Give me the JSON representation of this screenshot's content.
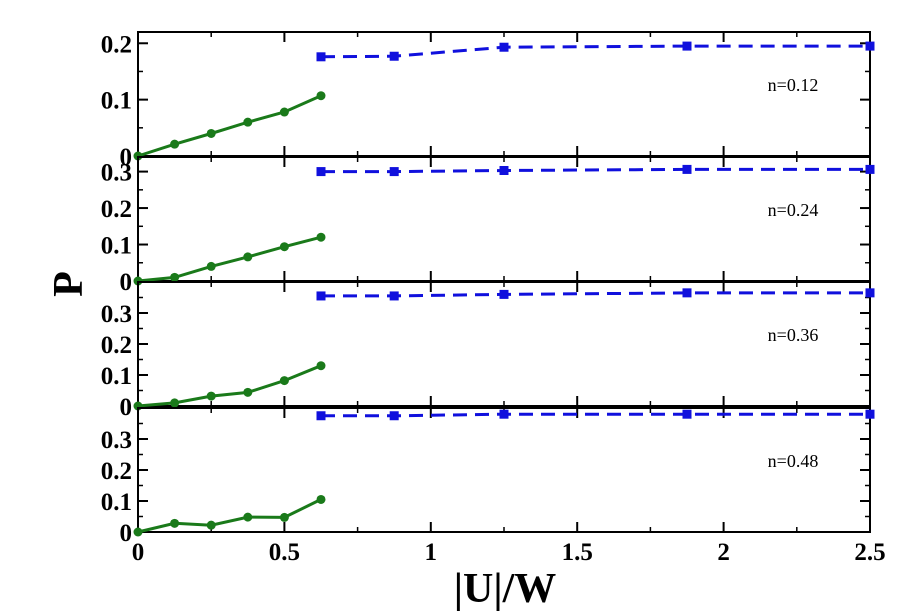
{
  "chart_data": {
    "type": "line",
    "xlabel": "|U|/W",
    "ylabel": "P",
    "x_ticks": [
      "0",
      "0.5",
      "1",
      "1.5",
      "2",
      "2.5"
    ],
    "xlim": [
      0,
      2.5
    ],
    "panels": [
      {
        "annotation": "n=0.12",
        "ylim": [
          0,
          0.22
        ],
        "y_ticks": [
          "0",
          "0.1",
          "0.2"
        ],
        "series": [
          {
            "color": "#1a7a1a",
            "style": "solid",
            "marker": "circle",
            "x": [
              0,
              0.125,
              0.25,
              0.375,
              0.5,
              0.625
            ],
            "y": [
              0.0,
              0.021,
              0.04,
              0.06,
              0.078,
              0.107
            ]
          },
          {
            "color": "#1010dd",
            "style": "dashed",
            "marker": "square",
            "x": [
              0.625,
              0.875,
              1.25,
              1.875,
              2.5
            ],
            "y": [
              0.176,
              0.177,
              0.193,
              0.195,
              0.195
            ]
          }
        ]
      },
      {
        "annotation": "n=0.24",
        "ylim": [
          0,
          0.34
        ],
        "y_ticks": [
          "0",
          "0.1",
          "0.2",
          "0.3"
        ],
        "series": [
          {
            "color": "#1a7a1a",
            "style": "solid",
            "marker": "circle",
            "x": [
              0,
              0.125,
              0.25,
              0.375,
              0.5,
              0.625
            ],
            "y": [
              0.0,
              0.01,
              0.04,
              0.066,
              0.094,
              0.12
            ]
          },
          {
            "color": "#1010dd",
            "style": "dashed",
            "marker": "square",
            "x": [
              0.625,
              0.875,
              1.25,
              1.875,
              2.5
            ],
            "y": [
              0.3,
              0.3,
              0.303,
              0.306,
              0.306
            ]
          }
        ]
      },
      {
        "annotation": "n=0.36",
        "ylim": [
          0,
          0.4
        ],
        "y_ticks": [
          "0",
          "0.1",
          "0.2",
          "0.3"
        ],
        "series": [
          {
            "color": "#1a7a1a",
            "style": "solid",
            "marker": "circle",
            "x": [
              0,
              0.125,
              0.25,
              0.375,
              0.5,
              0.625
            ],
            "y": [
              0.0,
              0.01,
              0.032,
              0.044,
              0.082,
              0.13
            ]
          },
          {
            "color": "#1010dd",
            "style": "dashed",
            "marker": "square",
            "x": [
              0.625,
              0.875,
              1.25,
              1.875,
              2.5
            ],
            "y": [
              0.355,
              0.355,
              0.36,
              0.365,
              0.365
            ]
          }
        ]
      },
      {
        "annotation": "n=0.48",
        "ylim": [
          0,
          0.4
        ],
        "y_ticks": [
          "0",
          "0.1",
          "0.2",
          "0.3"
        ],
        "series": [
          {
            "color": "#1a7a1a",
            "style": "solid",
            "marker": "circle",
            "x": [
              0,
              0.125,
              0.25,
              0.375,
              0.5,
              0.625
            ],
            "y": [
              0.0,
              0.028,
              0.022,
              0.048,
              0.047,
              0.105
            ]
          },
          {
            "color": "#1010dd",
            "style": "dashed",
            "marker": "square",
            "x": [
              0.625,
              0.875,
              1.25,
              1.875,
              2.5
            ],
            "y": [
              0.375,
              0.375,
              0.38,
              0.38,
              0.38
            ]
          }
        ]
      }
    ]
  }
}
